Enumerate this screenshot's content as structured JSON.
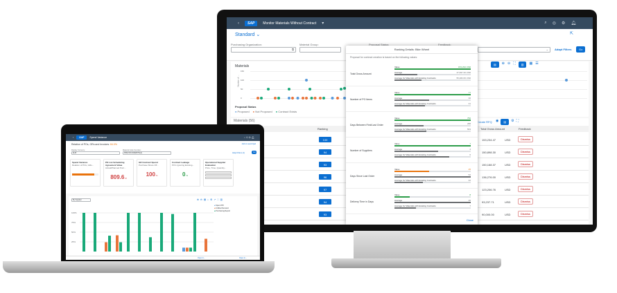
{
  "monitor": {
    "shell": {
      "title": "Monitor Materials Without Contract",
      "logo": "SAP",
      "icons": [
        "search-icon",
        "help-icon",
        "settings-icon",
        "notification-icon"
      ]
    },
    "variant": "Standard",
    "filters": [
      {
        "label": "Purchasing Organization:",
        "value": ""
      },
      {
        "label": "Material Group:",
        "value": ""
      },
      {
        "label": "Proposal Status:",
        "value": ""
      },
      {
        "label": "Feedback:",
        "value": ""
      }
    ],
    "adapt_filters": "Adapt Filters",
    "go": "Go",
    "chart": {
      "title": "Materials",
      "ylabel": "Number of ...",
      "yticks": [
        "150",
        "100",
        "50",
        "0"
      ],
      "legend_title": "Proposal Status",
      "legend": [
        {
          "label": "Proposed",
          "color": "#5899da"
        },
        {
          "label": "Not Proposed",
          "color": "#e8743b"
        },
        {
          "label": "Contract Exists",
          "color": "#19a979"
        }
      ],
      "details": "Details"
    },
    "table": {
      "title": "Materials (56)",
      "create_rfq": "Create RFQ",
      "columns": [
        "Ranking",
        "Total Gross Amount",
        "Feedback"
      ],
      "rows": [
        {
          "ranking": "100",
          "amount": "153,234.47",
          "currency": "USD",
          "feedback": "Dismiss"
        },
        {
          "ranking": "94",
          "amount": "150,898.30",
          "currency": "USD",
          "feedback": "Dismiss"
        },
        {
          "ranking": "93",
          "amount": "150,168.37",
          "currency": "USD",
          "feedback": "Dismiss"
        },
        {
          "ranking": "96",
          "amount": "136,276.00",
          "currency": "USD",
          "feedback": "Dismiss"
        },
        {
          "ranking": "97",
          "amount": "123,206.76",
          "currency": "USD",
          "feedback": "Dismiss"
        },
        {
          "ranking": "94",
          "amount": "93,237.71",
          "currency": "USD",
          "feedback": "Dismiss"
        },
        {
          "ranking": "93",
          "amount": "90,000.00",
          "currency": "USD",
          "feedback": "Dismiss"
        }
      ]
    },
    "popup": {
      "title": "Ranking Details: Bike Wheel",
      "intro": "Proposal for contract creation is based on the following values:",
      "close": "Close",
      "value_label": "Value",
      "avg_label": "Average",
      "existing_label": "Average for Materials with Existing Contracts",
      "sections": [
        {
          "label": "Total Gross Amount",
          "value": "153,234 USD",
          "average": "47,997.33 USD",
          "existing": "55,282.09 USD",
          "fill": 1.0,
          "avg_fill": 0.3,
          "ex_fill": 0.35,
          "color": "#2b9c48"
        },
        {
          "label": "Number of PO Items",
          "value": "77",
          "average": "36",
          "existing": "31",
          "fill": 1.0,
          "avg_fill": 0.45,
          "ex_fill": 0.4,
          "color": "#2b9c48"
        },
        {
          "label": "Days Between First/Last Order",
          "value": "750",
          "average": "288",
          "existing": "563",
          "fill": 1.0,
          "avg_fill": 0.38,
          "ex_fill": 0.42,
          "color": "#2b9c48"
        },
        {
          "label": "Number of Suppliers",
          "value": "7",
          "average": "4",
          "existing": "6",
          "fill": 1.0,
          "avg_fill": 0.57,
          "ex_fill": 0.72,
          "color": "#2b9c48"
        },
        {
          "label": "Days Since Last Order",
          "value": "25",
          "average": "52",
          "existing": "22",
          "fill": 0.45,
          "avg_fill": 1.0,
          "ex_fill": 0.37,
          "color": "#e9730c"
        },
        {
          "label": "Delivery Time in Days",
          "value": "8",
          "average": "26",
          "existing": "7",
          "fill": 0.2,
          "avg_fill": 1.0,
          "ex_fill": 0.28,
          "color": "#2b9c48"
        }
      ]
    }
  },
  "laptop": {
    "shell": {
      "title": "Spend Variance",
      "logo": "SAP"
    },
    "subtitle": "Relation of POs, GRs and Invoices:",
    "subtitle_value": "84.0%",
    "filters": [
      {
        "label": "Display Currency:",
        "value": "EUR"
      },
      {
        "label": "Material Code Function:",
        "value": "PREVIOUS/DEBITS(A)"
      }
    ],
    "adapt_filters": "Adapt Filters (2)",
    "go": "Go",
    "share": "Add to Launchpad",
    "tiles": [
      {
        "title": "Spend Variance",
        "subtitle": "Relation of POs, GRs...",
        "kpi": "",
        "unit": "",
        "progress": 0.84,
        "color": "#e9730c"
      },
      {
        "title": "PO List Scheduling Agreement Value",
        "subtitle": "Actual/Planned Purc...",
        "kpi": "809.6",
        "unit": "M",
        "color": "#d04343"
      },
      {
        "title": "GR Contract Spend",
        "subtitle": "Purchase Share Off...",
        "kpi": "100",
        "unit": "%",
        "color": "#d04343"
      },
      {
        "title": "Contract Leakage",
        "subtitle": "PO's Ignoring Existing...",
        "kpi": "0",
        "unit": "%",
        "color": "#2b9c48"
      },
      {
        "title": "Operational Supplier Evaluation",
        "subtitle": "Price, Time, Quantity...",
        "kpi": "",
        "unit": ""
      }
    ],
    "chart": {
      "type": "bar",
      "dropdown": "By Supplier",
      "yticks": [
        "100%",
        "75%",
        "50%",
        "25%"
      ],
      "legend": [
        {
          "label": "Spend PR",
          "color": "#5899da"
        },
        {
          "label": "Unfilled Demand",
          "color": "#e8743b"
        },
        {
          "label": "Purchasing Report",
          "color": "#19a979"
        }
      ],
      "groups": [
        {
          "vals": [
            0,
            0,
            100
          ]
        },
        {
          "vals": [
            0,
            0,
            100
          ]
        },
        {
          "vals": [
            0,
            24,
            41
          ]
        },
        {
          "vals": [
            0,
            42,
            24
          ]
        },
        {
          "vals": [
            0,
            0,
            100
          ]
        },
        {
          "vals": [
            0,
            0,
            100
          ]
        },
        {
          "vals": [
            0,
            0,
            37
          ]
        },
        {
          "vals": [
            0,
            0,
            100
          ]
        },
        {
          "vals": [
            0,
            0,
            97
          ]
        },
        {
          "vals": [
            10,
            10,
            10
          ]
        },
        {
          "vals": [
            0,
            0,
            100
          ]
        },
        {
          "vals": [
            0,
            33,
            0
          ]
        }
      ]
    },
    "footer": [
      "Open In...",
      "Open In..."
    ]
  }
}
